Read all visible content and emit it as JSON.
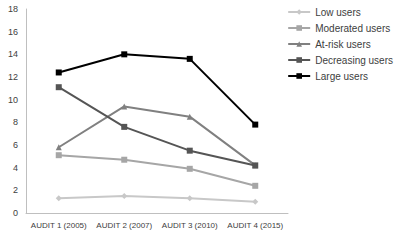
{
  "chart_data": {
    "type": "line",
    "categories": [
      "AUDIT 1 (2005)",
      "AUDIT 2 (2007)",
      "AUDIT 3 (2010)",
      "AUDIT 4 (2015)"
    ],
    "series": [
      {
        "name": "Low users",
        "color": "#c8c8c8",
        "marker": "diamond",
        "line_style": "solid",
        "values": [
          1.3,
          1.5,
          1.3,
          1.0
        ]
      },
      {
        "name": "Moderated users",
        "color": "#a6a6a6",
        "marker": "square",
        "line_style": "solid",
        "values": [
          5.1,
          4.7,
          3.9,
          2.4
        ]
      },
      {
        "name": "At-risk users",
        "color": "#808080",
        "marker": "triangle",
        "line_style": "solid",
        "values": [
          5.8,
          9.4,
          8.5,
          4.2
        ]
      },
      {
        "name": "Decreasing users",
        "color": "#555555",
        "marker": "square",
        "line_style": "solid",
        "values": [
          11.1,
          7.6,
          5.5,
          4.2
        ]
      },
      {
        "name": "Large users",
        "color": "#000000",
        "marker": "square",
        "line_style": "solid",
        "values": [
          12.4,
          14.0,
          13.6,
          7.8
        ]
      }
    ],
    "ylim": [
      0,
      18
    ],
    "yticks": [
      0,
      2,
      4,
      6,
      8,
      10,
      12,
      14,
      16,
      18
    ],
    "grid": false,
    "legend": "top-right"
  }
}
